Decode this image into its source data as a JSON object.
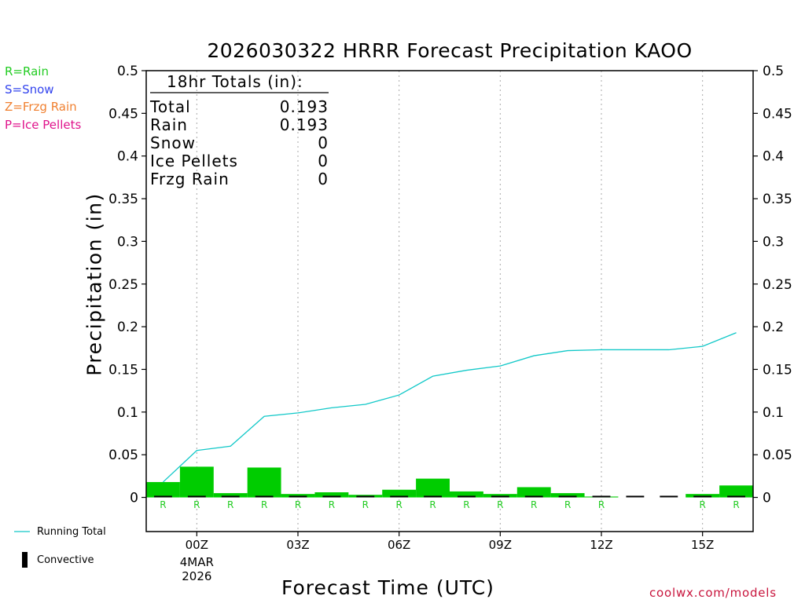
{
  "title": "2026030322 HRRR Forecast Precipitation KAOO",
  "legend_types": [
    {
      "label": "R=Rain",
      "color": "#22cc22"
    },
    {
      "label": "S=Snow",
      "color": "#3344ee"
    },
    {
      "label": "Z=Frzg Rain",
      "color": "#f08030"
    },
    {
      "label": "P=Ice Pellets",
      "color": "#e0148c"
    }
  ],
  "totals_box": {
    "header": "18hr Totals (in):",
    "rows": [
      {
        "label": "Total",
        "value": "0.193"
      },
      {
        "label": "Rain",
        "value": "0.193"
      },
      {
        "label": "Snow",
        "value": "0"
      },
      {
        "label": "Ice Pellets",
        "value": "0"
      },
      {
        "label": "Frzg Rain",
        "value": "0"
      }
    ]
  },
  "series_legend": {
    "running_total": "Running Total",
    "convective": "Convective"
  },
  "credit": "coolwx.com/models",
  "chart_data": {
    "type": "bar",
    "title": "2026030322 HRRR Forecast Precipitation KAOO",
    "xlabel": "Forecast Time (UTC)",
    "ylabel": "Precipitation (in)",
    "ylim": [
      -0.04,
      0.5
    ],
    "yticks": [
      0,
      0.05,
      0.1,
      0.15,
      0.2,
      0.25,
      0.3,
      0.35,
      0.4,
      0.45,
      0.5
    ],
    "ytick_labels": [
      "0",
      "0.05",
      "0.1",
      "0.15",
      "0.2",
      "0.25",
      "0.3",
      "0.35",
      "0.4",
      "0.45",
      "0.5"
    ],
    "xlim": [
      -1.5,
      16.5
    ],
    "xticks": [
      {
        "hour": 0,
        "label": "00Z",
        "extra": [
          "4MAR",
          "2026"
        ]
      },
      {
        "hour": 3,
        "label": "03Z",
        "extra": []
      },
      {
        "hour": 6,
        "label": "06Z",
        "extra": []
      },
      {
        "hour": 9,
        "label": "09Z",
        "extra": []
      },
      {
        "hour": 12,
        "label": "12Z",
        "extra": []
      },
      {
        "hour": 15,
        "label": "15Z",
        "extra": []
      }
    ],
    "hours": [
      -1,
      0,
      1,
      2,
      3,
      4,
      5,
      6,
      7,
      8,
      9,
      10,
      11,
      12,
      13,
      14,
      15,
      16
    ],
    "series": [
      {
        "name": "Hourly Precipitation",
        "color": "#00cc00",
        "values": [
          0.018,
          0.036,
          0.005,
          0.035,
          0.004,
          0.006,
          0.003,
          0.009,
          0.022,
          0.007,
          0.004,
          0.012,
          0.005,
          0.001,
          0.0,
          0.0,
          0.004,
          0.014
        ]
      },
      {
        "name": "Running Total",
        "color": "#11c8c8",
        "values": [
          0.018,
          0.055,
          0.06,
          0.095,
          0.099,
          0.105,
          0.109,
          0.12,
          0.142,
          0.149,
          0.154,
          0.166,
          0.172,
          0.173,
          0.173,
          0.173,
          0.177,
          0.193
        ]
      }
    ],
    "precip_type_markers": [
      "R",
      "R",
      "R",
      "R",
      "R",
      "R",
      "R",
      "R",
      "R",
      "R",
      "R",
      "R",
      "R",
      "R",
      "",
      "",
      "R",
      "R"
    ],
    "convective": [
      0.001,
      0.001,
      0.001,
      0.001,
      0.001,
      0.001,
      0.001,
      0.001,
      0.001,
      0.001,
      0.001,
      0.001,
      0.001,
      0.001,
      0.001,
      0.001,
      0.001,
      0.001
    ]
  }
}
